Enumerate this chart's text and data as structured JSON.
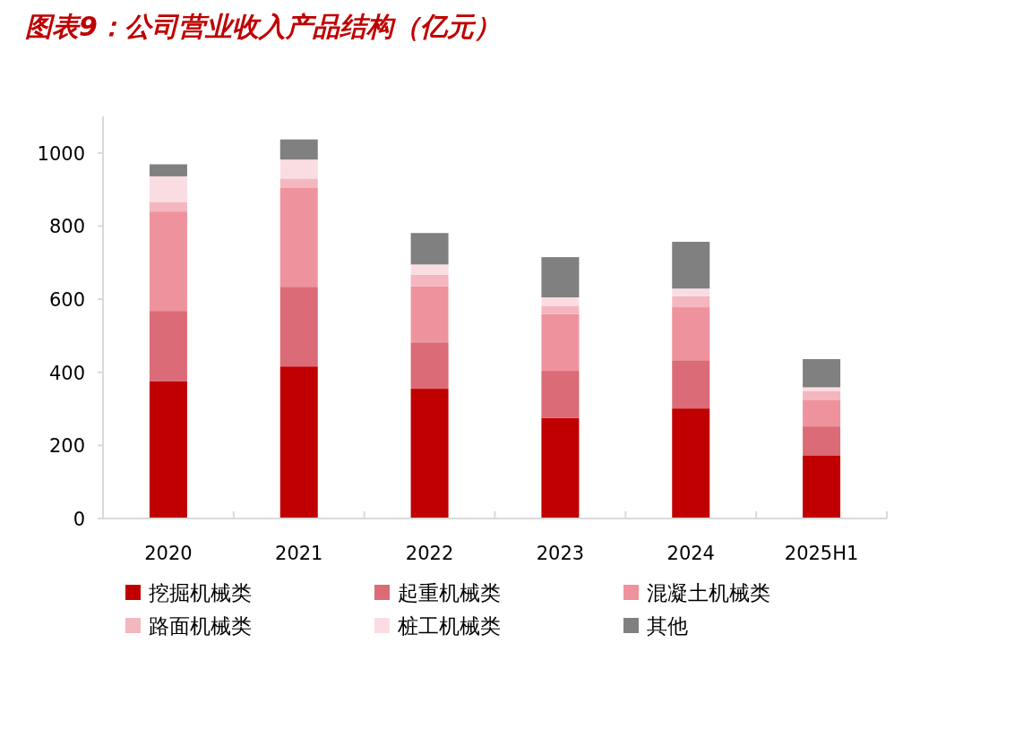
{
  "chart_data": {
    "type": "bar",
    "stacked": true,
    "title": "图表9：公司营业收入产品结构（亿元）",
    "categories": [
      "2020",
      "2021",
      "2022",
      "2023",
      "2024",
      "2025H1"
    ],
    "series": [
      {
        "name": "挖掘机械类",
        "color": "#c00000",
        "values": [
          375,
          416,
          355,
          275,
          301,
          173
        ]
      },
      {
        "name": "起重机械类",
        "color": "#db6b77",
        "values": [
          193,
          218,
          127,
          129,
          132,
          79
        ]
      },
      {
        "name": "混凝土机械类",
        "color": "#ee939d",
        "values": [
          272,
          270,
          153,
          155,
          145,
          73
        ]
      },
      {
        "name": "路面机械类",
        "color": "#f4b6bf",
        "values": [
          26,
          26,
          32,
          23,
          30,
          23
        ]
      },
      {
        "name": "桩工机械类",
        "color": "#fadde2",
        "values": [
          70,
          52,
          28,
          23,
          21,
          11
        ]
      },
      {
        "name": "其他",
        "color": "#808080",
        "values": [
          33,
          55,
          86,
          110,
          128,
          77
        ]
      }
    ],
    "ylim": [
      0,
      1100
    ],
    "yticks": [
      0,
      200,
      400,
      600,
      800,
      1000
    ],
    "grid": false,
    "legend": "bottom"
  }
}
